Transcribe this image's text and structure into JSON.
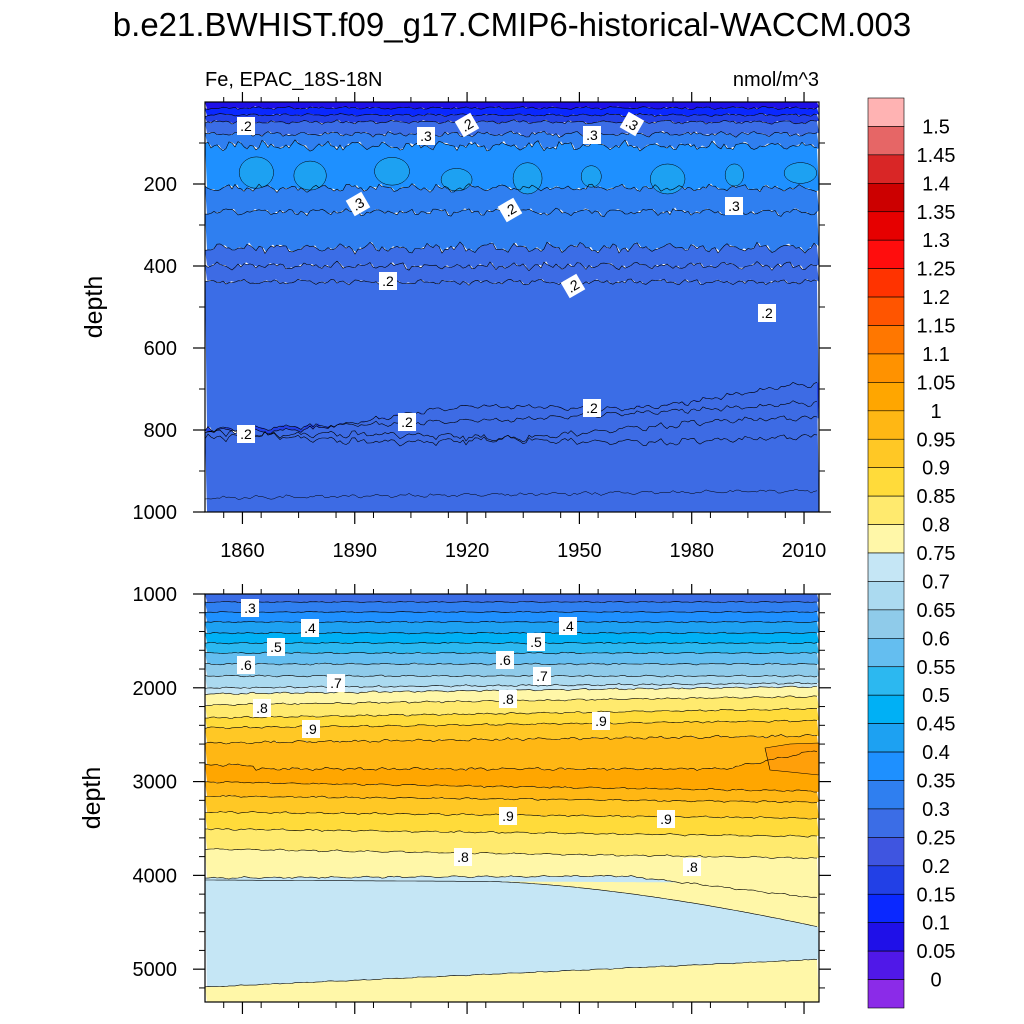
{
  "title": "b.e21.BWHIST.f09_g17.CMIP6-historical-WACCM.003",
  "chart_data": {
    "type": "contour",
    "variable_label": "Fe, EPAC_18S-18N",
    "units_label": "nmol/m^3",
    "x_ticks": [
      "1860",
      "1890",
      "1920",
      "1950",
      "1980",
      "2010"
    ],
    "x_range": [
      1850,
      2014
    ],
    "colorbar": {
      "labels": [
        "1.5",
        "1.45",
        "1.4",
        "1.35",
        "1.3",
        "1.25",
        "1.2",
        "1.15",
        "1.1",
        "1.05",
        "1",
        "0.95",
        "0.9",
        "0.85",
        "0.8",
        "0.75",
        "0.7",
        "0.65",
        "0.6",
        "0.55",
        "0.5",
        "0.45",
        "0.4",
        "0.35",
        "0.3",
        "0.25",
        "0.2",
        "0.15",
        "0.1",
        "0.05",
        "0"
      ],
      "colors": [
        "#FFB3B3",
        "#E66666",
        "#D92626",
        "#CC0000",
        "#E60000",
        "#FF0D0D",
        "#FF3300",
        "#FF5500",
        "#FF7700",
        "#FF9200",
        "#FFA600",
        "#FFB714",
        "#FFC825",
        "#FFDB3A",
        "#FFEA6E",
        "#FFF7A8",
        "#C5E6F5",
        "#ABDAF0",
        "#8FCBEA",
        "#64BEF0",
        "#2CB8F0",
        "#00B0F5",
        "#1DA1F2",
        "#1E90FF",
        "#2F7FF0",
        "#3B6DE6",
        "#3F55E0",
        "#2240E6",
        "#0A28FF",
        "#1F10E8",
        "#5018E8",
        "#8B2BE8"
      ]
    },
    "upper_panel": {
      "ylabel": "depth",
      "y_ticks": [
        "200",
        "400",
        "600",
        "800",
        "1000"
      ],
      "y_range": [
        0,
        1000
      ],
      "contour_labels": [
        ".2",
        ".3",
        ".2",
        ".3",
        ".2",
        ".3",
        ".3",
        ".3",
        ".2",
        ".2",
        ".2",
        ".2",
        ".2",
        ".2"
      ]
    },
    "lower_panel": {
      "ylabel": "depth",
      "y_ticks": [
        "1000",
        "2000",
        "3000",
        "4000",
        "5000"
      ],
      "y_range": [
        1000,
        5350
      ],
      "contour_labels": [
        ".3",
        ".4",
        ".5",
        ".5",
        ".4",
        ".6",
        ".6",
        ".7",
        ".7",
        ".8",
        ".8",
        ".9",
        ".9",
        ".9",
        ".9",
        ".8",
        ".8"
      ]
    }
  }
}
